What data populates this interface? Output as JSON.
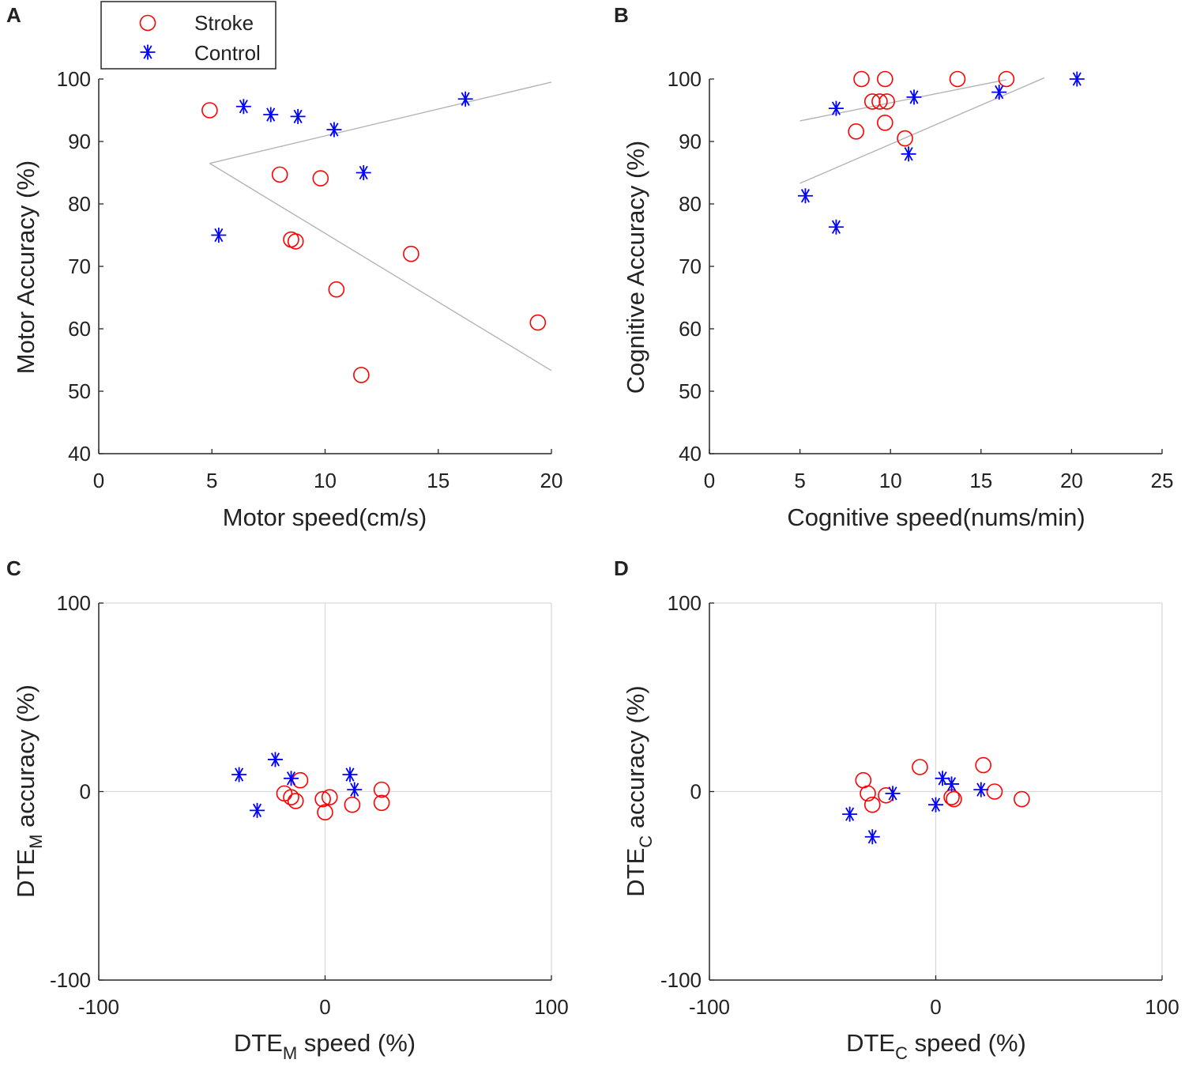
{
  "colors": {
    "stroke": "#ff0000",
    "control": "#0000ff",
    "fit": "#b4b4b4",
    "axis": "#262626",
    "zero_line": "#d9d9d9"
  },
  "legend": [
    {
      "label": "Stroke",
      "marker": "circle-icon"
    },
    {
      "label": "Control",
      "marker": "asterisk-icon"
    }
  ],
  "chart_data": [
    {
      "panel": "A",
      "type": "scatter",
      "xlabel": "Motor speed(cm/s)",
      "ylabel": "Motor Accuracy (%)",
      "xlim": [
        0,
        20
      ],
      "ylim": [
        40,
        100
      ],
      "xticks": [
        0,
        5,
        10,
        15,
        20
      ],
      "yticks": [
        40,
        50,
        60,
        70,
        80,
        90,
        100
      ],
      "xtick_labels": [
        "0",
        "5",
        "10",
        "15",
        "20"
      ],
      "ytick_labels": [
        "40",
        "50",
        "60",
        "70",
        "80",
        "90",
        "100"
      ],
      "series": [
        {
          "name": "Stroke",
          "marker": "circle",
          "points": [
            [
              4.9,
              95
            ],
            [
              8.0,
              84.7
            ],
            [
              9.8,
              84.1
            ],
            [
              8.5,
              74.3
            ],
            [
              8.7,
              74.0
            ],
            [
              13.8,
              72.0
            ],
            [
              10.5,
              66.3
            ],
            [
              11.6,
              52.6
            ],
            [
              19.4,
              61.0
            ]
          ]
        },
        {
          "name": "Control",
          "marker": "asterisk",
          "points": [
            [
              5.3,
              75.0
            ],
            [
              6.4,
              95.6
            ],
            [
              7.6,
              94.3
            ],
            [
              8.8,
              94.0
            ],
            [
              10.4,
              91.9
            ],
            [
              11.7,
              85.0
            ],
            [
              16.2,
              96.8
            ]
          ]
        }
      ],
      "fit_lines": [
        {
          "series": "Control",
          "x": [
            4.9,
            20.0
          ],
          "y": [
            86.5,
            99.5
          ]
        },
        {
          "series": "Stroke",
          "x": [
            4.9,
            20.0
          ],
          "y": [
            86.5,
            53.3
          ]
        }
      ]
    },
    {
      "panel": "B",
      "type": "scatter",
      "xlabel": "Cognitive speed(nums/min)",
      "ylabel": "Cognitive Accuracy (%)",
      "xlim": [
        0,
        25
      ],
      "ylim": [
        40,
        100
      ],
      "xticks": [
        0,
        5,
        10,
        15,
        20,
        25
      ],
      "yticks": [
        40,
        50,
        60,
        70,
        80,
        90,
        100
      ],
      "xtick_labels": [
        "0",
        "5",
        "10",
        "15",
        "20",
        "25"
      ],
      "ytick_labels": [
        "40",
        "50",
        "60",
        "70",
        "80",
        "90",
        "100"
      ],
      "series": [
        {
          "name": "Stroke",
          "marker": "circle",
          "points": [
            [
              8.4,
              100
            ],
            [
              9.7,
              100
            ],
            [
              13.7,
              100
            ],
            [
              16.4,
              100
            ],
            [
              9.0,
              96.4
            ],
            [
              9.4,
              96.4
            ],
            [
              9.8,
              96.4
            ],
            [
              9.7,
              93.0
            ],
            [
              8.1,
              91.6
            ],
            [
              10.8,
              90.5
            ]
          ]
        },
        {
          "name": "Control",
          "marker": "asterisk",
          "points": [
            [
              7.0,
              95.3
            ],
            [
              11.3,
              97.1
            ],
            [
              16.0,
              97.9
            ],
            [
              20.3,
              100.0
            ],
            [
              11.0,
              88.0
            ],
            [
              5.3,
              81.3
            ],
            [
              7.0,
              76.3
            ]
          ]
        }
      ],
      "fit_lines": [
        {
          "series": "Stroke",
          "x": [
            5.0,
            16.4
          ],
          "y": [
            93.3,
            99.9
          ]
        },
        {
          "series": "Control",
          "x": [
            5.0,
            18.5
          ],
          "y": [
            83.3,
            100.2
          ]
        }
      ]
    },
    {
      "panel": "C",
      "type": "scatter",
      "xlabel": "DTE",
      "xlabel_sub": "M",
      "xlabel_rest": " speed (%)",
      "ylabel": "DTE",
      "ylabel_sub": "M",
      "ylabel_rest": " accuracy (%)",
      "xlim": [
        -100,
        100
      ],
      "ylim": [
        -100,
        100
      ],
      "xticks": [
        -100,
        0,
        100
      ],
      "yticks": [
        -100,
        0,
        100
      ],
      "xtick_labels": [
        "-100",
        "0",
        "100"
      ],
      "ytick_labels": [
        "-100",
        "0",
        "100"
      ],
      "zero_lines": true,
      "series": [
        {
          "name": "Stroke",
          "marker": "circle",
          "points": [
            [
              -11,
              6
            ],
            [
              -18,
              -1
            ],
            [
              -15,
              -3
            ],
            [
              -13,
              -5
            ],
            [
              -1,
              -4
            ],
            [
              2,
              -3
            ],
            [
              0,
              -11
            ],
            [
              12,
              -7
            ],
            [
              25,
              1
            ],
            [
              25,
              -6
            ]
          ]
        },
        {
          "name": "Control",
          "marker": "asterisk",
          "points": [
            [
              -38,
              9
            ],
            [
              -22,
              17
            ],
            [
              -15,
              7
            ],
            [
              -30,
              -10
            ],
            [
              11,
              9
            ],
            [
              13,
              1
            ]
          ]
        }
      ]
    },
    {
      "panel": "D",
      "type": "scatter",
      "xlabel": "DTE",
      "xlabel_sub": "C",
      "xlabel_rest": " speed (%)",
      "ylabel": "DTE",
      "ylabel_sub": "C",
      "ylabel_rest": " accuracy (%)",
      "xlim": [
        -100,
        100
      ],
      "ylim": [
        -100,
        100
      ],
      "xticks": [
        -100,
        0,
        100
      ],
      "yticks": [
        -100,
        0,
        100
      ],
      "xtick_labels": [
        "-100",
        "0",
        "100"
      ],
      "ytick_labels": [
        "-100",
        "0",
        "100"
      ],
      "zero_lines": true,
      "series": [
        {
          "name": "Stroke",
          "marker": "circle",
          "points": [
            [
              -32,
              6
            ],
            [
              -30,
              -1
            ],
            [
              -22,
              -2
            ],
            [
              -28,
              -7
            ],
            [
              -7,
              13
            ],
            [
              7,
              -3
            ],
            [
              8,
              -4
            ],
            [
              21,
              14
            ],
            [
              26,
              0
            ],
            [
              38,
              -4
            ]
          ]
        },
        {
          "name": "Control",
          "marker": "asterisk",
          "points": [
            [
              -38,
              -12
            ],
            [
              -28,
              -24
            ],
            [
              -19,
              -1
            ],
            [
              0,
              -7
            ],
            [
              3,
              7
            ],
            [
              7,
              4
            ],
            [
              20,
              1
            ]
          ]
        }
      ]
    }
  ]
}
